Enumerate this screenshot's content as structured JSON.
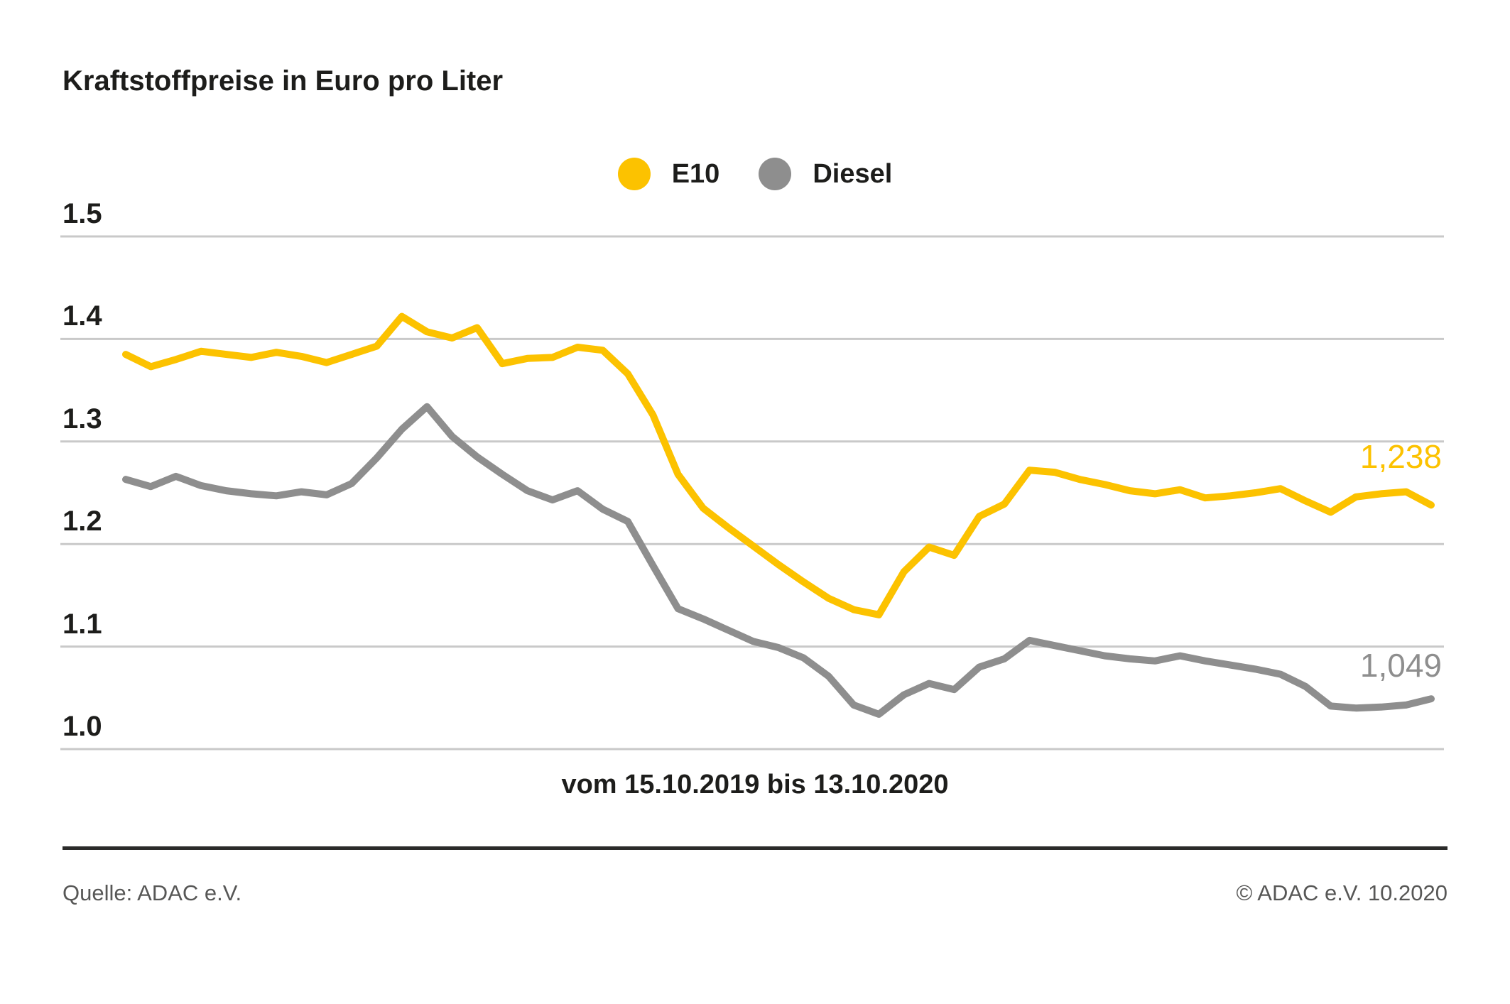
{
  "chart_data": {
    "type": "line",
    "title": "Kraftstoffpreise in Euro pro Liter",
    "xlabel": "vom 15.10.2019 bis 13.10.2020",
    "ylabel": "Euro pro Liter",
    "x_start": "15.10.2019",
    "x_end": "13.10.2020",
    "x_interval": "weekly",
    "yticks": [
      "1.5",
      "1.4",
      "1.3",
      "1.2",
      "1.1",
      "1.0"
    ],
    "ylim": [
      1.0,
      1.5
    ],
    "grid": true,
    "grid_color": "#C9C9C9",
    "legend_position": "top-center",
    "series": [
      {
        "name": "E10",
        "color": "#FCC200",
        "end_label": "1,238",
        "values": [
          1.385,
          1.373,
          1.38,
          1.388,
          1.385,
          1.382,
          1.387,
          1.383,
          1.377,
          1.385,
          1.393,
          1.422,
          1.407,
          1.401,
          1.411,
          1.376,
          1.381,
          1.382,
          1.392,
          1.389,
          1.366,
          1.326,
          1.268,
          1.235,
          1.216,
          1.198,
          1.18,
          1.163,
          1.147,
          1.136,
          1.131,
          1.173,
          1.197,
          1.189,
          1.227,
          1.239,
          1.272,
          1.27,
          1.263,
          1.258,
          1.252,
          1.249,
          1.253,
          1.245,
          1.247,
          1.25,
          1.254,
          1.242,
          1.231,
          1.246,
          1.249,
          1.251,
          1.238
        ]
      },
      {
        "name": "Diesel",
        "color": "#8E8E8E",
        "end_label": "1,049",
        "values": [
          1.263,
          1.256,
          1.266,
          1.257,
          1.252,
          1.249,
          1.247,
          1.251,
          1.248,
          1.259,
          1.284,
          1.312,
          1.334,
          1.305,
          1.285,
          1.268,
          1.252,
          1.243,
          1.252,
          1.234,
          1.222,
          1.179,
          1.137,
          1.127,
          1.116,
          1.105,
          1.099,
          1.089,
          1.071,
          1.043,
          1.034,
          1.053,
          1.064,
          1.058,
          1.08,
          1.088,
          1.106,
          1.101,
          1.096,
          1.091,
          1.088,
          1.086,
          1.091,
          1.086,
          1.082,
          1.078,
          1.073,
          1.061,
          1.042,
          1.04,
          1.041,
          1.043,
          1.049
        ]
      }
    ]
  },
  "footer": {
    "source": "Quelle: ADAC e.V.",
    "copyright": "© ADAC e.V. 10.2020"
  }
}
